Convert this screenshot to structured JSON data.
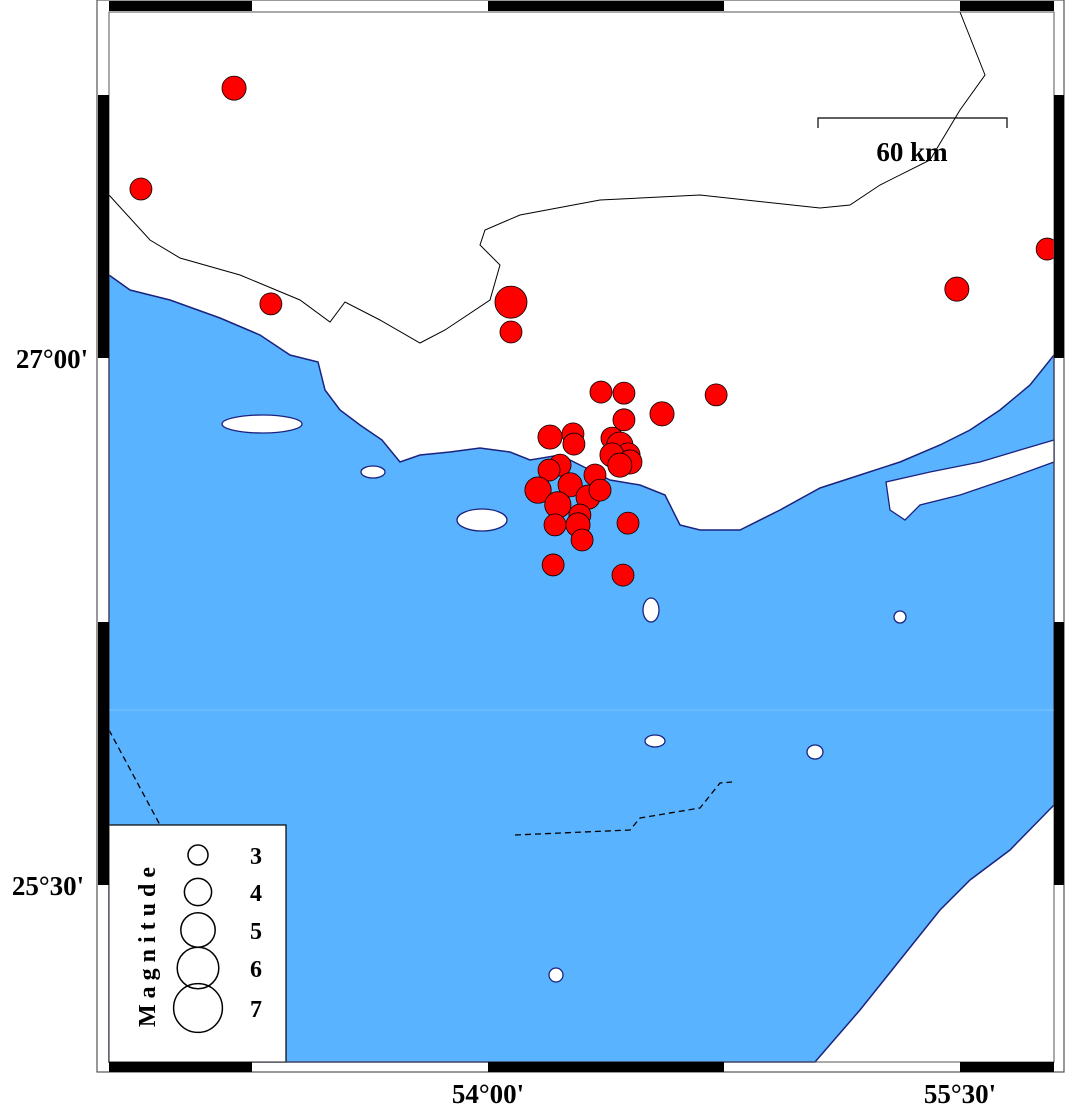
{
  "map": {
    "colors": {
      "sea": "#5ab3ff",
      "land": "#ffffff",
      "coast": "#1a237e",
      "event": "#ff0000",
      "event_outline": "#000000"
    },
    "extent": {
      "lon_tick_labels": [
        "54°00'",
        "55°30'"
      ],
      "lat_tick_labels": [
        "27°00'",
        "25°30'"
      ]
    },
    "scale_bar": {
      "label": "60 km"
    },
    "legend": {
      "title": "Magnitude",
      "entries": [
        {
          "mag": 3,
          "label": "3"
        },
        {
          "mag": 4,
          "label": "4"
        },
        {
          "mag": 5,
          "label": "5"
        },
        {
          "mag": 6,
          "label": "6"
        },
        {
          "mag": 7,
          "label": "7"
        }
      ]
    },
    "events": [
      {
        "lon": 53.193,
        "lat": 27.768,
        "mag": 3.3
      },
      {
        "lon": 52.897,
        "lat": 27.481,
        "mag": 3.0
      },
      {
        "lon": 53.31,
        "lat": 27.154,
        "mag": 3.0
      },
      {
        "lon": 54.073,
        "lat": 27.159,
        "mag": 4.4
      },
      {
        "lon": 54.073,
        "lat": 27.074,
        "mag": 3.0
      },
      {
        "lon": 55.777,
        "lat": 27.31,
        "mag": 3.0
      },
      {
        "lon": 55.49,
        "lat": 27.196,
        "mag": 3.3
      },
      {
        "lon": 54.359,
        "lat": 26.903,
        "mag": 3.0
      },
      {
        "lon": 54.432,
        "lat": 26.9,
        "mag": 3.0
      },
      {
        "lon": 54.725,
        "lat": 26.895,
        "mag": 3.0
      },
      {
        "lon": 54.553,
        "lat": 26.841,
        "mag": 3.3
      },
      {
        "lon": 54.432,
        "lat": 26.824,
        "mag": 3.0
      },
      {
        "lon": 54.27,
        "lat": 26.784,
        "mag": 3.0
      },
      {
        "lon": 54.197,
        "lat": 26.775,
        "mag": 3.3
      },
      {
        "lon": 54.273,
        "lat": 26.755,
        "mag": 3.0
      },
      {
        "lon": 54.394,
        "lat": 26.772,
        "mag": 3.0
      },
      {
        "lon": 54.419,
        "lat": 26.752,
        "mag": 3.6
      },
      {
        "lon": 54.445,
        "lat": 26.724,
        "mag": 3.3
      },
      {
        "lon": 54.394,
        "lat": 26.724,
        "mag": 3.3
      },
      {
        "lon": 54.451,
        "lat": 26.704,
        "mag": 3.3
      },
      {
        "lon": 54.229,
        "lat": 26.695,
        "mag": 3.0
      },
      {
        "lon": 54.194,
        "lat": 26.681,
        "mag": 3.0
      },
      {
        "lon": 54.419,
        "lat": 26.695,
        "mag": 3.3
      },
      {
        "lon": 54.34,
        "lat": 26.667,
        "mag": 3.0
      },
      {
        "lon": 54.159,
        "lat": 26.624,
        "mag": 3.6
      },
      {
        "lon": 54.261,
        "lat": 26.639,
        "mag": 3.3
      },
      {
        "lon": 54.318,
        "lat": 26.604,
        "mag": 3.3
      },
      {
        "lon": 54.356,
        "lat": 26.624,
        "mag": 3.0
      },
      {
        "lon": 54.222,
        "lat": 26.582,
        "mag": 3.6
      },
      {
        "lon": 54.292,
        "lat": 26.553,
        "mag": 3.0
      },
      {
        "lon": 54.213,
        "lat": 26.525,
        "mag": 3.0
      },
      {
        "lon": 54.286,
        "lat": 26.525,
        "mag": 3.3
      },
      {
        "lon": 54.445,
        "lat": 26.53,
        "mag": 3.0
      },
      {
        "lon": 54.299,
        "lat": 26.482,
        "mag": 3.0
      },
      {
        "lon": 54.207,
        "lat": 26.411,
        "mag": 3.0
      },
      {
        "lon": 54.429,
        "lat": 26.382,
        "mag": 3.0
      }
    ]
  }
}
